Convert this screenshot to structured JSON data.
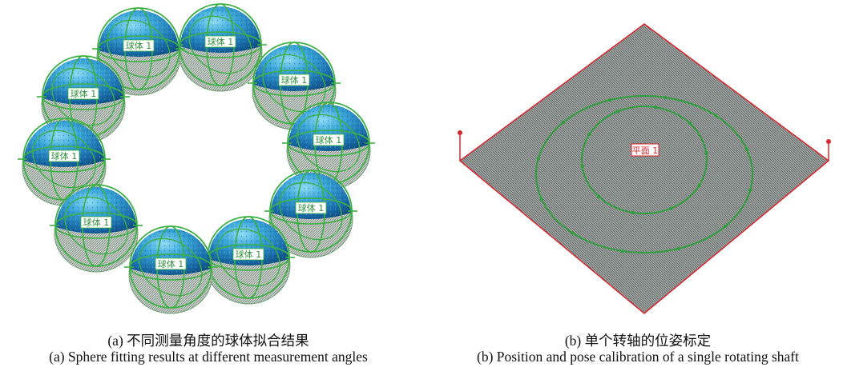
{
  "panel_a": {
    "sphere_label": "球体 1",
    "caption_zh": "(a) 不同测量角度的球体拟合结果",
    "caption_en": "(a) Sphere fitting results at different measurement angles"
  },
  "panel_b": {
    "plane_label": "平面 1",
    "caption_zh": "(b) 单个转轴的位姿标定",
    "caption_en": "(b) Position and pose calibration of a single rotating shaft"
  },
  "colors": {
    "sphere_blue": "#1f86c2",
    "sphere_highlight": "#7fd4f0",
    "fit_green": "#3cb043",
    "plane_gray": "#8a8f8d",
    "outline_red": "#d8262e"
  }
}
